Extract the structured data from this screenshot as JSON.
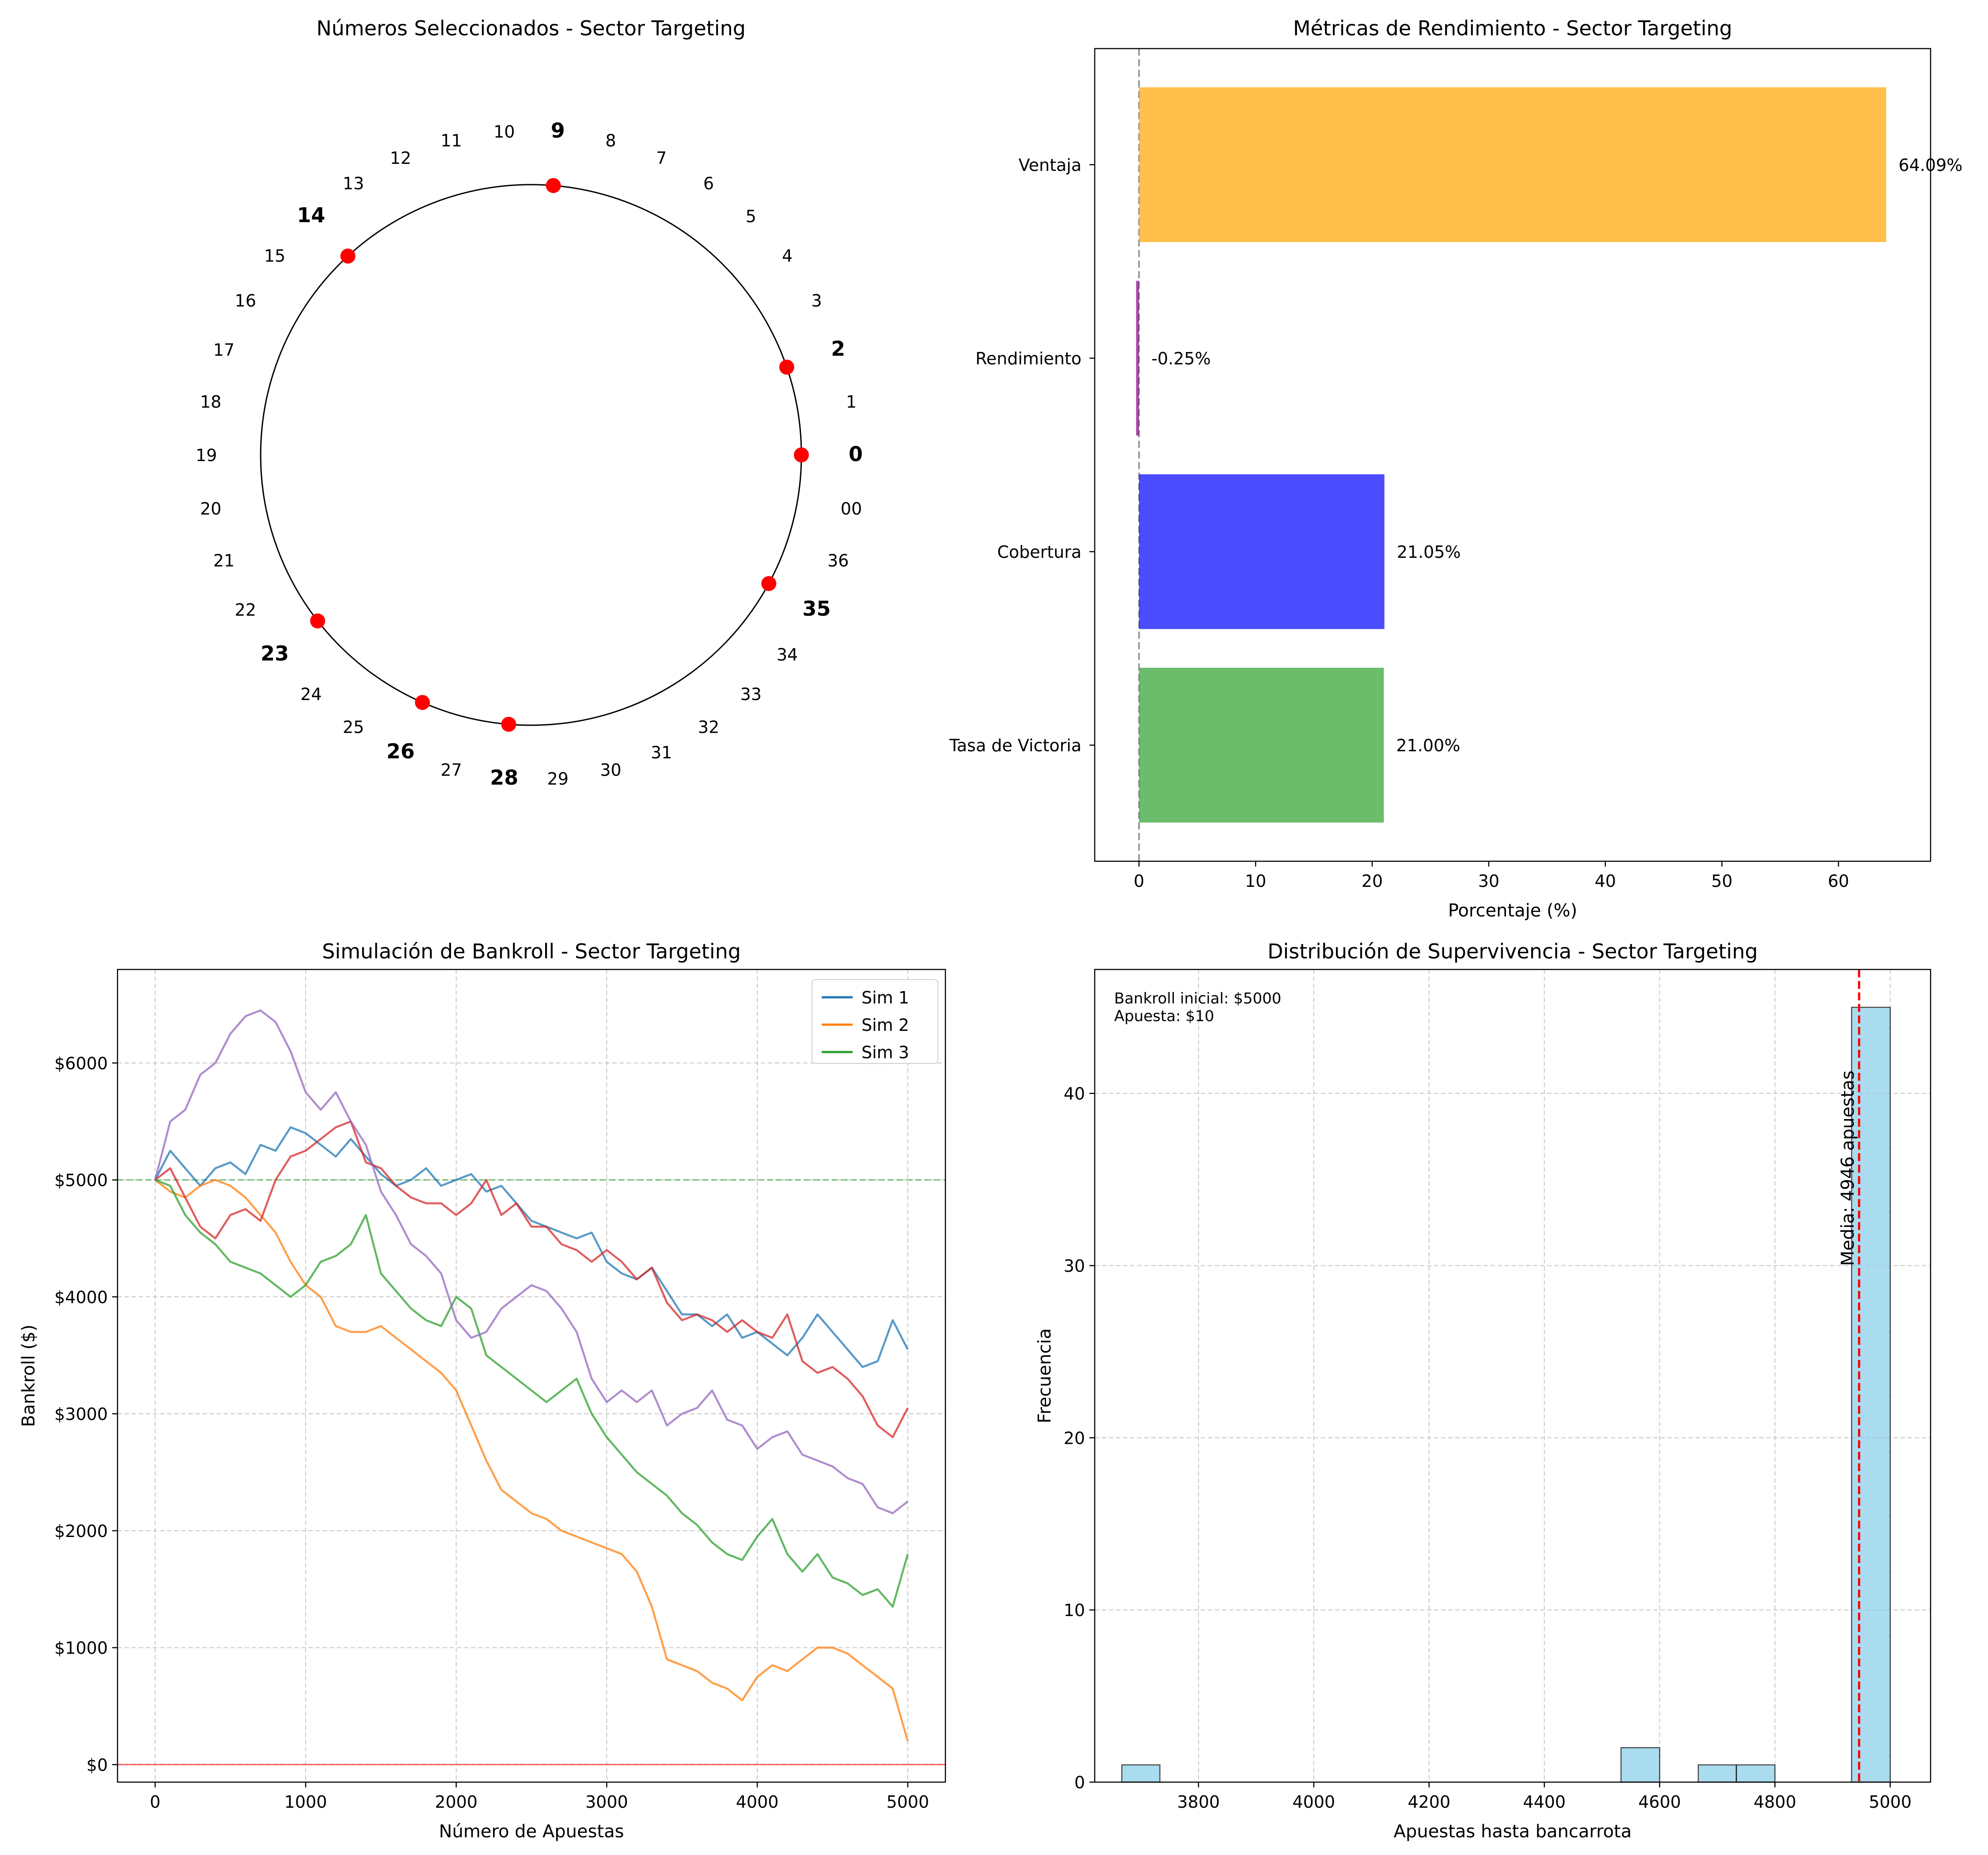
{
  "chart_data": [
    {
      "type": "scatter",
      "title": "Números Seleccionados - Sector Targeting",
      "wheel_order": [
        "0",
        "2",
        "14",
        "35",
        "23",
        "4",
        "16",
        "33",
        "21",
        "6",
        "18",
        "31",
        "19",
        "8",
        "12",
        "29",
        "25",
        "10",
        "27",
        "00",
        "1",
        "13",
        "36",
        "24",
        "3",
        "15",
        "34",
        "22",
        "5",
        "17",
        "32",
        "20",
        "7",
        "11",
        "30",
        "26",
        "9",
        "28"
      ],
      "selected": [
        "0",
        "2",
        "9",
        "14",
        "23",
        "26",
        "28",
        "35"
      ],
      "wheel_labels": [
        {
          "label": "0",
          "angle": 0
        },
        {
          "label": "1",
          "angle": 9.47
        },
        {
          "label": "2",
          "angle": 18.95
        },
        {
          "label": "3",
          "angle": 28.42
        },
        {
          "label": "4",
          "angle": 37.89
        },
        {
          "label": "5",
          "angle": 47.37
        },
        {
          "label": "6",
          "angle": 56.84
        },
        {
          "label": "7",
          "angle": 66.32
        },
        {
          "label": "8",
          "angle": 75.79
        },
        {
          "label": "9",
          "angle": 85.26
        },
        {
          "label": "10",
          "angle": 94.74
        },
        {
          "label": "11",
          "angle": 104.21
        },
        {
          "label": "12",
          "angle": 113.68
        },
        {
          "label": "13",
          "angle": 123.16
        },
        {
          "label": "14",
          "angle": 132.63
        },
        {
          "label": "15",
          "angle": 142.11
        },
        {
          "label": "16",
          "angle": 151.58
        },
        {
          "label": "17",
          "angle": 161.05
        },
        {
          "label": "18",
          "angle": 170.53
        },
        {
          "label": "19",
          "angle": 180
        },
        {
          "label": "20",
          "angle": 189.47
        },
        {
          "label": "21",
          "angle": 198.95
        },
        {
          "label": "22",
          "angle": 208.42
        },
        {
          "label": "23",
          "angle": 217.89
        },
        {
          "label": "24",
          "angle": 227.37
        },
        {
          "label": "25",
          "angle": 236.84
        },
        {
          "label": "26",
          "angle": 246.32
        },
        {
          "label": "27",
          "angle": 255.79
        },
        {
          "label": "28",
          "angle": 265.26
        },
        {
          "label": "29",
          "angle": 274.74
        },
        {
          "label": "30",
          "angle": 284.21
        },
        {
          "label": "31",
          "angle": 293.68
        },
        {
          "label": "32",
          "angle": 303.16
        },
        {
          "label": "33",
          "angle": 312.63
        },
        {
          "label": "34",
          "angle": 322.11
        },
        {
          "label": "35",
          "angle": 331.58
        },
        {
          "label": "36",
          "angle": 341.05
        },
        {
          "label": "00",
          "angle": 350.53
        }
      ],
      "selected_color": "#ff0000"
    },
    {
      "type": "bar",
      "orientation": "horizontal",
      "title": "Métricas de Rendimiento - Sector Targeting",
      "xlabel": "Porcentaje (%)",
      "categories": [
        "Tasa de Victoria",
        "Cobertura",
        "Rendimiento",
        "Ventaja"
      ],
      "values": [
        21.0,
        21.05,
        -0.25,
        64.09
      ],
      "value_labels": [
        "21.00%",
        "21.05%",
        "-0.25%",
        "64.09%"
      ],
      "colors": [
        "#2ca02c",
        "#0000ff",
        "#800080",
        "#ffa500"
      ],
      "xlim": [
        -3.8,
        67.9
      ],
      "xticks": [
        0,
        10,
        20,
        30,
        40,
        50,
        60
      ],
      "reference_line_x": 0
    },
    {
      "type": "line",
      "title": "Simulación de Bankroll - Sector Targeting",
      "xlabel": "Número de Apuestas",
      "ylabel": "Bankroll ($)",
      "xlim": [
        -250,
        5250
      ],
      "ylim": [
        -150,
        6800
      ],
      "xticks": [
        0,
        1000,
        2000,
        3000,
        4000,
        5000
      ],
      "yticks": [
        0,
        1000,
        2000,
        3000,
        4000,
        5000,
        6000
      ],
      "ytick_labels": [
        "$0",
        "$1000",
        "$2000",
        "$3000",
        "$4000",
        "$5000",
        "$6000"
      ],
      "legend": {
        "position": "top-right",
        "entries": [
          "Sim 1",
          "Sim 2",
          "Sim 3"
        ]
      },
      "hlines": [
        {
          "y": 5000,
          "color": "#2ca02c"
        },
        {
          "y": 0,
          "color": "#ff0000"
        }
      ],
      "series": [
        {
          "name": "Sim 1",
          "color": "#1f77b4",
          "x": [
            0,
            100,
            200,
            300,
            400,
            500,
            600,
            700,
            800,
            900,
            1000,
            1100,
            1200,
            1300,
            1400,
            1500,
            1600,
            1700,
            1800,
            1900,
            2000,
            2100,
            2200,
            2300,
            2400,
            2500,
            2600,
            2700,
            2800,
            2900,
            3000,
            3100,
            3200,
            3300,
            3400,
            3500,
            3600,
            3700,
            3800,
            3900,
            4000,
            4100,
            4200,
            4300,
            4400,
            4500,
            4600,
            4700,
            4800,
            4900,
            5000
          ],
          "y": [
            5000,
            5250,
            5100,
            4950,
            5100,
            5150,
            5050,
            5300,
            5250,
            5450,
            5400,
            5300,
            5200,
            5350,
            5200,
            5050,
            4950,
            5000,
            5100,
            4950,
            5000,
            5050,
            4900,
            4950,
            4800,
            4650,
            4600,
            4550,
            4500,
            4550,
            4300,
            4200,
            4150,
            4250,
            4050,
            3850,
            3850,
            3750,
            3850,
            3650,
            3700,
            3600,
            3500,
            3650,
            3850,
            3700,
            3550,
            3400,
            3450,
            3800,
            3550
          ]
        },
        {
          "name": "Sim 2",
          "color": "#ff7f0e",
          "x": [
            0,
            100,
            200,
            300,
            400,
            500,
            600,
            700,
            800,
            900,
            1000,
            1100,
            1200,
            1300,
            1400,
            1500,
            1600,
            1700,
            1800,
            1900,
            2000,
            2100,
            2200,
            2300,
            2400,
            2500,
            2600,
            2700,
            2800,
            2900,
            3000,
            3100,
            3200,
            3300,
            3400,
            3500,
            3600,
            3700,
            3800,
            3900,
            4000,
            4100,
            4200,
            4300,
            4400,
            4500,
            4600,
            4700,
            4800,
            4900,
            5000
          ],
          "y": [
            5000,
            4900,
            4850,
            4950,
            5000,
            4950,
            4850,
            4700,
            4550,
            4300,
            4100,
            4000,
            3750,
            3700,
            3700,
            3750,
            3650,
            3550,
            3450,
            3350,
            3200,
            2900,
            2600,
            2350,
            2250,
            2150,
            2100,
            2000,
            1950,
            1900,
            1850,
            1800,
            1650,
            1350,
            900,
            850,
            800,
            700,
            650,
            550,
            750,
            850,
            800,
            900,
            1000,
            1000,
            950,
            850,
            750,
            650,
            200
          ]
        },
        {
          "name": "Sim 3",
          "color": "#2ca02c",
          "x": [
            0,
            100,
            200,
            300,
            400,
            500,
            600,
            700,
            800,
            900,
            1000,
            1100,
            1200,
            1300,
            1400,
            1500,
            1600,
            1700,
            1800,
            1900,
            2000,
            2100,
            2200,
            2300,
            2400,
            2500,
            2600,
            2700,
            2800,
            2900,
            3000,
            3100,
            3200,
            3300,
            3400,
            3500,
            3600,
            3700,
            3800,
            3900,
            4000,
            4100,
            4200,
            4300,
            4400,
            4500,
            4600,
            4700,
            4800,
            4900,
            5000
          ],
          "y": [
            5000,
            4950,
            4700,
            4550,
            4450,
            4300,
            4250,
            4200,
            4100,
            4000,
            4100,
            4300,
            4350,
            4450,
            4700,
            4200,
            4050,
            3900,
            3800,
            3750,
            4000,
            3900,
            3500,
            3400,
            3300,
            3200,
            3100,
            3200,
            3300,
            3000,
            2800,
            2650,
            2500,
            2400,
            2300,
            2150,
            2050,
            1900,
            1800,
            1750,
            1950,
            2100,
            1800,
            1650,
            1800,
            1600,
            1550,
            1450,
            1500,
            1350,
            1800
          ]
        },
        {
          "color": "#d62728",
          "x": [
            0,
            100,
            200,
            300,
            400,
            500,
            600,
            700,
            800,
            900,
            1000,
            1100,
            1200,
            1300,
            1400,
            1500,
            1600,
            1700,
            1800,
            1900,
            2000,
            2100,
            2200,
            2300,
            2400,
            2500,
            2600,
            2700,
            2800,
            2900,
            3000,
            3100,
            3200,
            3300,
            3400,
            3500,
            3600,
            3700,
            3800,
            3900,
            4000,
            4100,
            4200,
            4300,
            4400,
            4500,
            4600,
            4700,
            4800,
            4900,
            5000
          ],
          "y": [
            5000,
            5100,
            4850,
            4600,
            4500,
            4700,
            4750,
            4650,
            5000,
            5200,
            5250,
            5350,
            5450,
            5500,
            5150,
            5100,
            4950,
            4850,
            4800,
            4800,
            4700,
            4800,
            5000,
            4700,
            4800,
            4600,
            4600,
            4450,
            4400,
            4300,
            4400,
            4300,
            4150,
            4250,
            3950,
            3800,
            3850,
            3800,
            3700,
            3800,
            3700,
            3650,
            3850,
            3450,
            3350,
            3400,
            3300,
            3150,
            2900,
            2800,
            3050
          ]
        },
        {
          "color": "#9467bd",
          "x": [
            0,
            100,
            200,
            300,
            400,
            500,
            600,
            700,
            800,
            900,
            1000,
            1100,
            1200,
            1300,
            1400,
            1500,
            1600,
            1700,
            1800,
            1900,
            2000,
            2100,
            2200,
            2300,
            2400,
            2500,
            2600,
            2700,
            2800,
            2900,
            3000,
            3100,
            3200,
            3300,
            3400,
            3500,
            3600,
            3700,
            3800,
            3900,
            4000,
            4100,
            4200,
            4300,
            4400,
            4500,
            4600,
            4700,
            4800,
            4900,
            5000
          ],
          "y": [
            5000,
            5500,
            5600,
            5900,
            6000,
            6250,
            6400,
            6450,
            6350,
            6100,
            5750,
            5600,
            5750,
            5500,
            5300,
            4900,
            4700,
            4450,
            4350,
            4200,
            3800,
            3650,
            3700,
            3900,
            4000,
            4100,
            4050,
            3900,
            3700,
            3300,
            3100,
            3200,
            3100,
            3200,
            2900,
            3000,
            3050,
            3200,
            2950,
            2900,
            2700,
            2800,
            2850,
            2650,
            2600,
            2550,
            2450,
            2400,
            2200,
            2150,
            2250
          ]
        }
      ]
    },
    {
      "type": "bar",
      "title": "Distribución de Supervivencia - Sector Targeting",
      "xlabel": "Apuestas hasta bancarrota",
      "ylabel": "Frecuencia",
      "xlim": [
        3620,
        5070
      ],
      "ylim": [
        0,
        47.2
      ],
      "xticks": [
        3800,
        4000,
        4200,
        4400,
        4600,
        4800,
        5000
      ],
      "yticks": [
        0,
        10,
        20,
        30,
        40
      ],
      "bins": [
        {
          "x0": 3667,
          "x1": 3733,
          "count": 1
        },
        {
          "x0": 4533,
          "x1": 4600,
          "count": 2
        },
        {
          "x0": 4667,
          "x1": 4733,
          "count": 1
        },
        {
          "x0": 4733,
          "x1": 4800,
          "count": 1
        },
        {
          "x0": 4933,
          "x1": 5000,
          "count": 45
        }
      ],
      "bar_color": "#87ceeb",
      "mean": 4946,
      "mean_label": "Media: 4946 apuestas",
      "annotation_lines": [
        "Bankroll inicial: $5000",
        "Apuesta: $10"
      ]
    }
  ]
}
